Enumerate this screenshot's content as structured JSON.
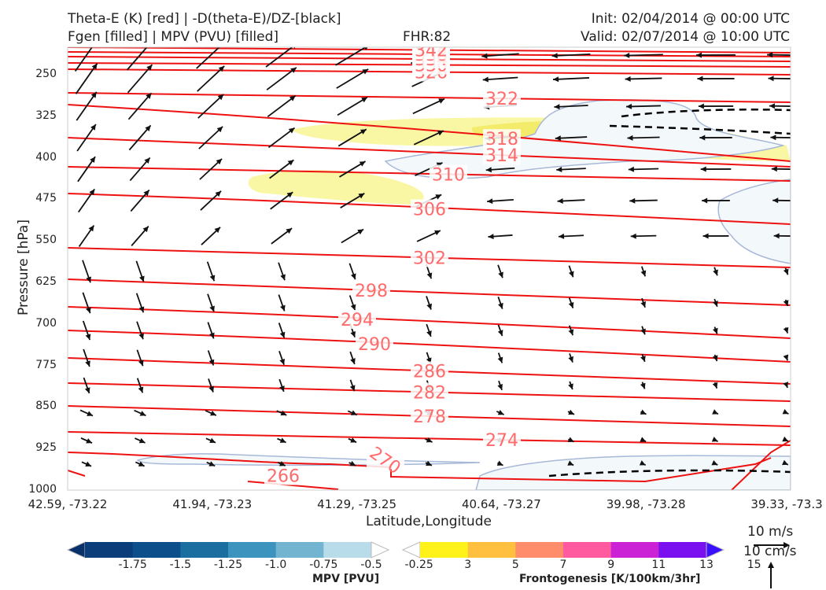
{
  "header": {
    "line1_left": "Theta-E (K) [red] | -D(theta-E)/DZ-[black]",
    "line2_left": "Fgen [filled] | MPV (PVU) [filled]",
    "fhr": "FHR:82",
    "init": "Init: 02/04/2014 @ 00:00 UTC",
    "valid": "Valid: 02/07/2014 @ 10:00 UTC"
  },
  "axes": {
    "ylabel": "Pressure [hPa]",
    "xlabel": "Latitude,Longitude",
    "yticks": [
      "250",
      "325",
      "400",
      "475",
      "550",
      "625",
      "700",
      "775",
      "850",
      "925",
      "1000"
    ],
    "xticks": [
      "42.59, -73.22",
      "41.94, -73.23",
      "41.29, -73.25",
      "40.64, -73.27",
      "39.98, -73.28",
      "39.33, -73.3"
    ]
  },
  "wind_key": {
    "label_ms": "10 m/s",
    "label_cms": "10 cm/s"
  },
  "colorbars": {
    "mpv": {
      "title": "MPV [PVU]",
      "labels": [
        "-1.75",
        "-1.5",
        "-1.25",
        "-1.0",
        "-0.75",
        "-0.5",
        "-0.25"
      ],
      "colors": [
        "#08306b",
        "#0b3d7a",
        "#0d4f8a",
        "#1a6ea0",
        "#3c93be",
        "#73b5d1",
        "#b8dcea",
        "#ffffff"
      ]
    },
    "fgen": {
      "title": "Frontogenesis [K/100km/3hr]",
      "labels": [
        "3",
        "5",
        "7",
        "9",
        "11",
        "13",
        "15"
      ],
      "colors": [
        "#ffffff",
        "#fff21a",
        "#ffc040",
        "#ff8c6a",
        "#ff5aa0",
        "#cc22d6",
        "#7a10f0",
        "#3a10ff"
      ]
    }
  },
  "chart_data": {
    "type": "contour",
    "title": "Theta-E (K) [red] | -D(theta-E)/DZ-[black]",
    "xlabel": "Latitude,Longitude",
    "ylabel": "Pressure [hPa]",
    "ylim": [
      1000,
      200
    ],
    "x_categories": [
      "42.59, -73.22",
      "41.94, -73.23",
      "41.29, -73.25",
      "40.64, -73.27",
      "39.98, -73.28",
      "39.33, -73.3"
    ],
    "theta_e_contour_labels": [
      "266",
      "270",
      "274",
      "278",
      "282",
      "286",
      "290",
      "294",
      "298",
      "302",
      "306",
      "310",
      "314",
      "318",
      "322",
      "326",
      "330",
      "334",
      "338",
      "342"
    ],
    "colors": {
      "theta_e": "#ee1111",
      "label": "#ff6a6a",
      "neg_stability": "#000000",
      "fgen_fill": "#f7f58a",
      "mpv_fill": "#f0f7f9",
      "mpv_edge": "#a8b8d8"
    }
  }
}
